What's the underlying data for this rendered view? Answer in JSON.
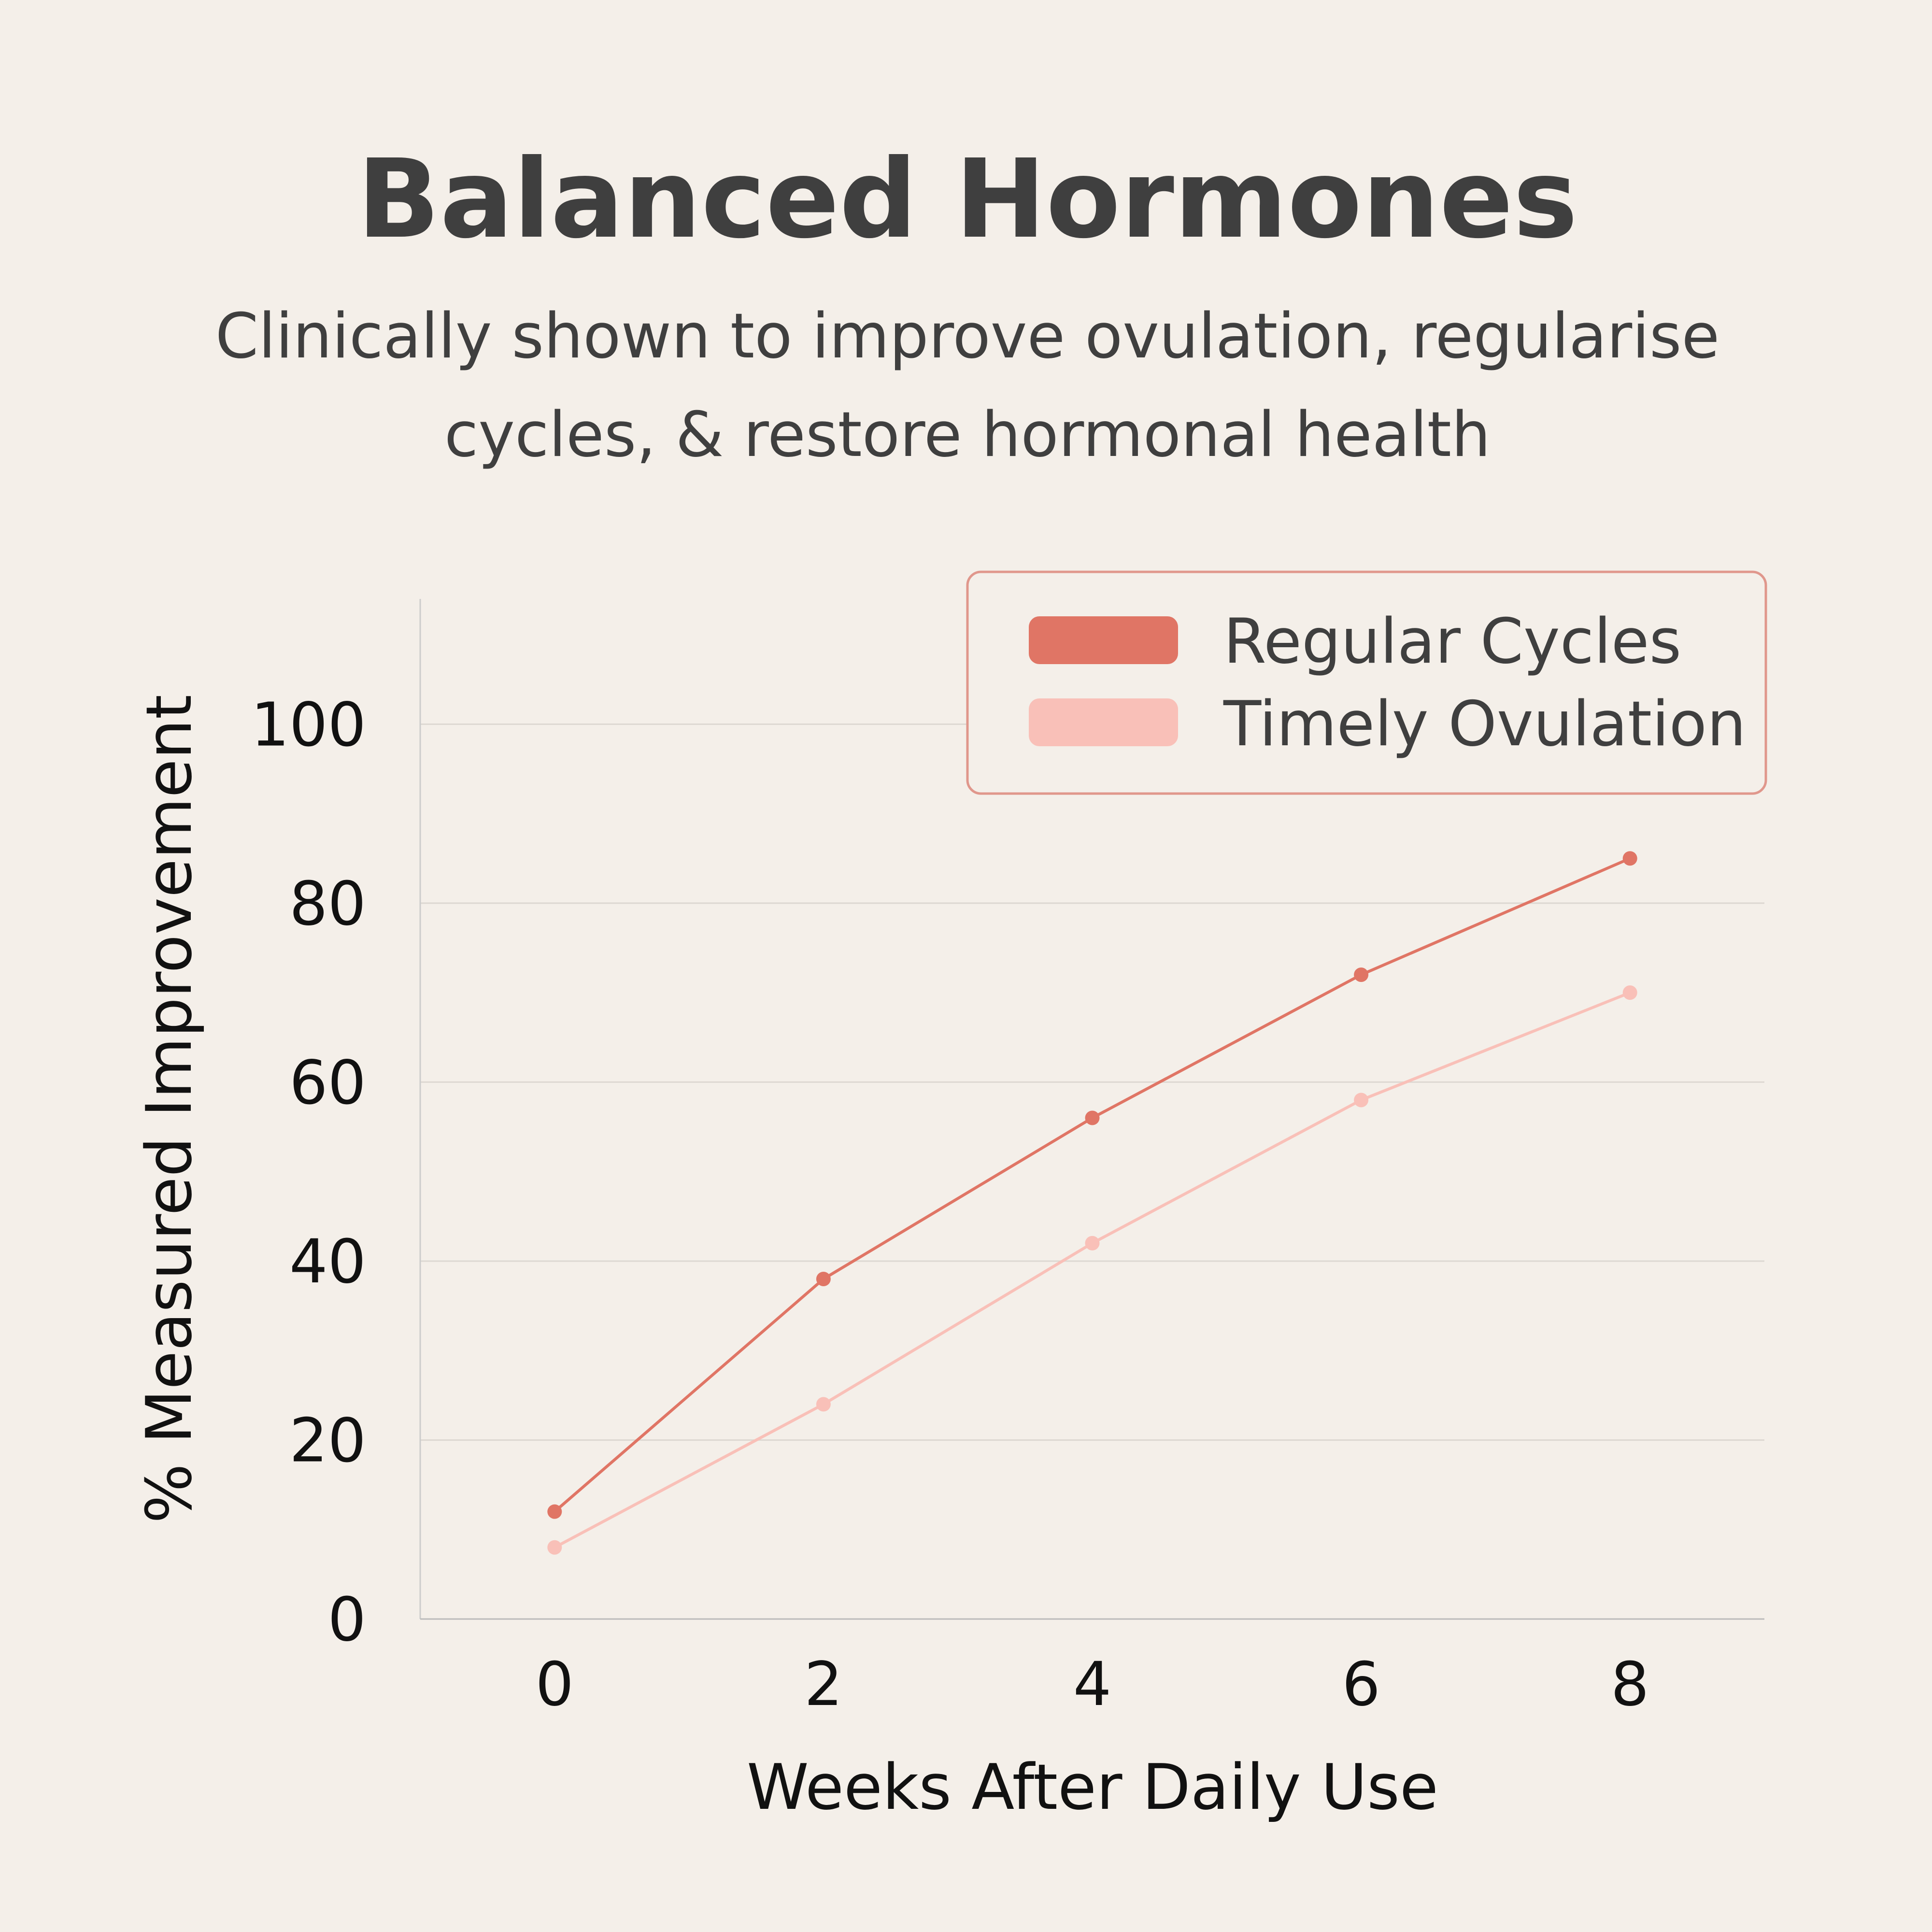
{
  "chart_data": {
    "type": "line",
    "title": "Balanced Hormones",
    "subtitle_lines": [
      "Clinically shown to improve ovulation, regularise",
      "cycles, & restore hormonal health"
    ],
    "xlabel": "Weeks After Daily Use",
    "ylabel": "% Measured Improvement",
    "x": [
      0,
      2,
      4,
      6,
      8
    ],
    "xticks": [
      "0",
      "2",
      "4",
      "6",
      "8"
    ],
    "yticks": [
      "0",
      "20",
      "40",
      "60",
      "80",
      "100"
    ],
    "xlim": [
      -1,
      9
    ],
    "ylim": [
      0,
      114
    ],
    "grid": true,
    "legend_position": "top-right",
    "series": [
      {
        "name": "Regular Cycles",
        "values": [
          12,
          38,
          56,
          72,
          85
        ],
        "color": "#E07565"
      },
      {
        "name": "Timely Ovulation",
        "values": [
          8,
          24,
          42,
          58,
          70
        ],
        "color": "#F9C0B8"
      }
    ]
  }
}
